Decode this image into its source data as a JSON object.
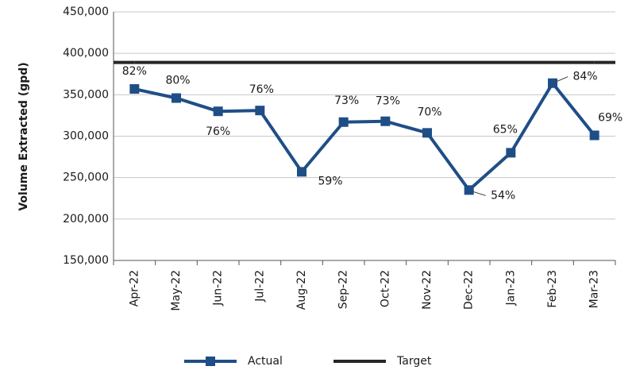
{
  "chart_data": {
    "type": "line",
    "y_label": "Volume Extracted (gpd)",
    "categories": [
      "Apr-22",
      "May-22",
      "Jun-22",
      "Jul-22",
      "Aug-22",
      "Sep-22",
      "Oct-22",
      "Nov-22",
      "Dec-22",
      "Jan-23",
      "Feb-23",
      "Mar-23"
    ],
    "series": [
      {
        "name": "Actual",
        "color": "#1f4e87",
        "marker": "square",
        "values": [
          357000,
          346000,
          330000,
          331000,
          257000,
          317000,
          318000,
          304000,
          235000,
          280000,
          364000,
          301000
        ],
        "point_labels": [
          "82%",
          "80%",
          "76%",
          "76%",
          "59%",
          "73%",
          "73%",
          "70%",
          "54%",
          "65%",
          "84%",
          "69%"
        ]
      },
      {
        "name": "Target",
        "color": "#262626",
        "values": [
          389000,
          389000,
          389000,
          389000,
          389000,
          389000,
          389000,
          389000,
          389000,
          389000,
          389000,
          389000
        ]
      }
    ],
    "ylim": [
      150000,
      450000
    ],
    "yticks": [
      {
        "value": 150000,
        "label": "150,000"
      },
      {
        "value": 200000,
        "label": "200,000"
      },
      {
        "value": 250000,
        "label": "250,000"
      },
      {
        "value": 300000,
        "label": "300,000"
      },
      {
        "value": 350000,
        "label": "350,000"
      },
      {
        "value": 400000,
        "label": "400,000"
      },
      {
        "value": 450000,
        "label": "450,000"
      }
    ],
    "grid": true,
    "legend": "bottom"
  }
}
